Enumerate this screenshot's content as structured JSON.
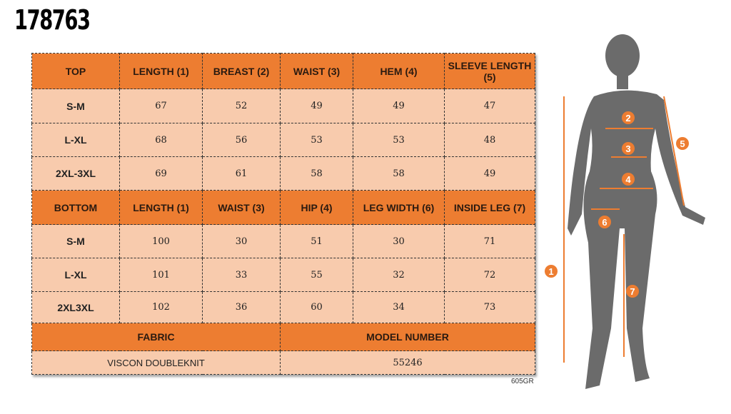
{
  "product_code": "178763",
  "top": {
    "headers": [
      "TOP",
      "LENGTH (1)",
      "BREAST (2)",
      "WAIST (3)",
      "HEM (4)",
      "SLEEVE LENGTH (5)"
    ],
    "rows": [
      [
        "S-M",
        "67",
        "52",
        "49",
        "49",
        "47"
      ],
      [
        "L-XL",
        "68",
        "56",
        "53",
        "53",
        "48"
      ],
      [
        "2XL-3XL",
        "69",
        "61",
        "58",
        "58",
        "49"
      ]
    ]
  },
  "bottom": {
    "headers": [
      "BOTTOM",
      "LENGTH (1)",
      "WAIST (3)",
      "HIP (4)",
      "LEG WIDTH (6)",
      "INSIDE LEG (7)"
    ],
    "rows": [
      [
        "S-M",
        "100",
        "30",
        "51",
        "30",
        "71"
      ],
      [
        "L-XL",
        "101",
        "33",
        "55",
        "32",
        "72"
      ],
      [
        "2XL3XL",
        "102",
        "36",
        "60",
        "34",
        "73"
      ]
    ]
  },
  "info": {
    "fabric_label": "FABRIC",
    "model_label": "MODEL NUMBER",
    "fabric": "VISCON DOUBLEKNIT",
    "model": "55246"
  },
  "reference": "605GR",
  "markers": [
    "1",
    "2",
    "3",
    "4",
    "5",
    "6",
    "7"
  ],
  "colors": {
    "header": "#ed7d31",
    "cell": "#f8cbad",
    "silhouette": "#6b6b6b"
  }
}
